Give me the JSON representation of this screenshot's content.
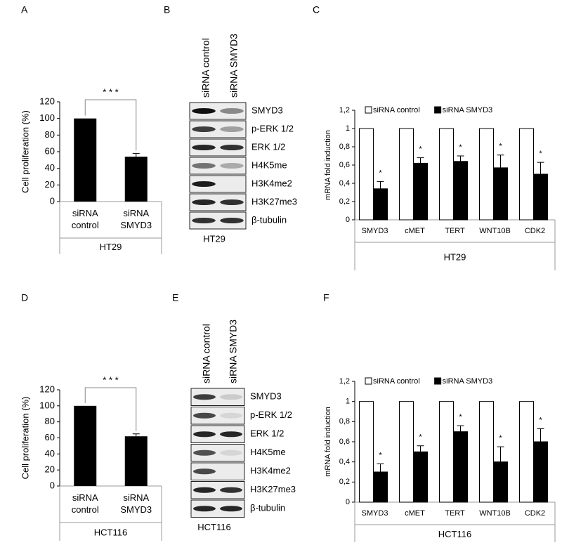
{
  "chart_data": [
    {
      "type": "bar",
      "panel": "A",
      "ylabel": "Cell proliferation (%)",
      "xlabel": "HT29",
      "categories": [
        "siRNA control",
        "siRNA SMYD3"
      ],
      "values": [
        100,
        54
      ],
      "errors": [
        null,
        4
      ],
      "color": "#000000",
      "significance": "* * *",
      "ylim": [
        0,
        120
      ],
      "yticks": [
        0,
        20,
        40,
        60,
        80,
        100,
        120
      ]
    },
    {
      "type": "grouped",
      "panel": "C",
      "ylabel": "mRNA fold induction",
      "xlabel": "HT29",
      "categories": [
        "SMYD3",
        "cMET",
        "TERT",
        "WNT10B",
        "CDK2"
      ],
      "series": [
        {
          "name": "siRNA control",
          "color": "#ffffff",
          "values": [
            1,
            1,
            1,
            1,
            1
          ]
        },
        {
          "name": "siRNA SMYD3",
          "color": "#000000",
          "values": [
            0.34,
            0.62,
            0.64,
            0.57,
            0.5
          ],
          "errors": [
            0.08,
            0.06,
            0.06,
            0.14,
            0.13
          ]
        }
      ],
      "annotations": [
        "*",
        "*",
        "*",
        "*",
        "*"
      ],
      "ylim": [
        0,
        1.2
      ],
      "yticks": [
        0,
        {
          "value": 0.2,
          "label": "0,2"
        },
        {
          "value": 0.4,
          "label": "0,4"
        },
        {
          "value": 0.6,
          "label": "0,6"
        },
        {
          "value": 0.8,
          "label": "0,8"
        },
        1,
        {
          "value": 1.2,
          "label": "1,2"
        }
      ]
    },
    {
      "type": "bar",
      "panel": "D",
      "ylabel": "Cell proliferation (%)",
      "xlabel": "HCT116",
      "categories": [
        "siRNA control",
        "siRNA SMYD3"
      ],
      "values": [
        100,
        62
      ],
      "errors": [
        null,
        3
      ],
      "color": "#000000",
      "significance": "* * *",
      "ylim": [
        0,
        120
      ],
      "yticks": [
        0,
        20,
        40,
        60,
        80,
        100,
        120
      ]
    },
    {
      "type": "grouped",
      "panel": "F",
      "ylabel": "mRNA fold induction",
      "xlabel": "HCT116",
      "categories": [
        "SMYD3",
        "cMET",
        "TERT",
        "WNT10B",
        "CDK2"
      ],
      "series": [
        {
          "name": "siRNA control",
          "color": "#ffffff",
          "values": [
            1,
            1,
            1,
            1,
            1
          ]
        },
        {
          "name": "siRNA SMYD3",
          "color": "#000000",
          "values": [
            0.3,
            0.5,
            0.7,
            0.4,
            0.6
          ],
          "errors": [
            0.08,
            0.06,
            0.06,
            0.15,
            0.13
          ]
        }
      ],
      "annotations": [
        "*",
        "*",
        "*",
        "*",
        "*"
      ],
      "ylim": [
        0,
        1.2
      ],
      "yticks": [
        0,
        {
          "value": 0.2,
          "label": "0,2"
        },
        {
          "value": 0.4,
          "label": "0,4"
        },
        {
          "value": 0.6,
          "label": "0,6"
        },
        {
          "value": 0.8,
          "label": "0,8"
        },
        1,
        {
          "value": 1.2,
          "label": "1,2"
        }
      ]
    }
  ],
  "blots": [
    {
      "panel": "B",
      "lanes": [
        "siRNA control",
        "siRNA SMYD3"
      ],
      "rows": [
        "SMYD3",
        "p-ERK 1/2",
        "ERK 1/2",
        "H4K5me",
        "H3K4me2",
        "H3K27me3",
        "β-tubulin"
      ],
      "cell_line": "HT29"
    },
    {
      "panel": "E",
      "lanes": [
        "siRNA control",
        "siRNA SMYD3"
      ],
      "rows": [
        "SMYD3",
        "p-ERK 1/2",
        "ERK 1/2",
        "H4K5me",
        "H3K4me2",
        "H3K27me3",
        "β-tubulin"
      ],
      "cell_line": "HCT116"
    }
  ]
}
